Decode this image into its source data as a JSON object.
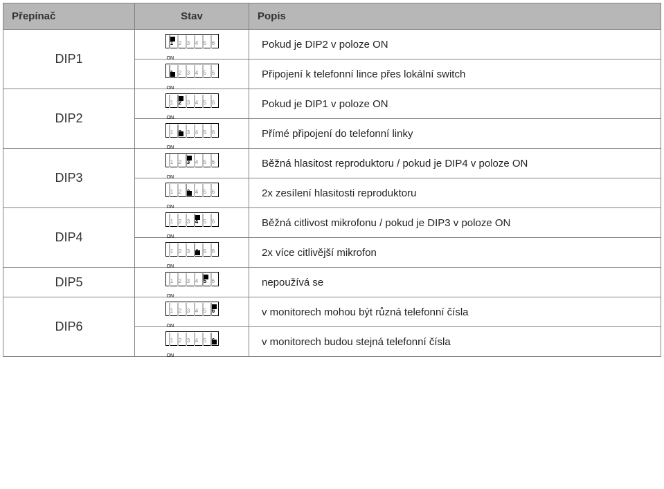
{
  "colors": {
    "header_bg": "#b7b7b7",
    "border": "#808080",
    "text": "#222222",
    "inactive": "#bbbbbb",
    "knob": "#000000"
  },
  "header": {
    "col_switch": "Přepínač",
    "col_state": "Stav",
    "col_desc": "Popis"
  },
  "on_label": "ON",
  "rows": [
    {
      "name": "DIP1",
      "states": [
        {
          "highlight": 1,
          "position": "up",
          "desc": "Pokud je DIP2 v poloze ON"
        },
        {
          "highlight": 1,
          "position": "down",
          "desc": "Připojení k telefonní lince přes lokální switch"
        }
      ]
    },
    {
      "name": "DIP2",
      "states": [
        {
          "highlight": 2,
          "position": "up",
          "desc": "Pokud je DIP1 v poloze ON"
        },
        {
          "highlight": 2,
          "position": "down",
          "desc": "Přímé připojení do telefonní linky"
        }
      ]
    },
    {
      "name": "DIP3",
      "states": [
        {
          "highlight": 3,
          "position": "up",
          "desc": "Běžná hlasitost reproduktoru / pokud je DIP4 v poloze ON"
        },
        {
          "highlight": 3,
          "position": "down",
          "desc": "2x zesílení hlasitosti reproduktoru"
        }
      ]
    },
    {
      "name": "DIP4",
      "states": [
        {
          "highlight": 4,
          "position": "up",
          "desc": "Běžná citlivost mikrofonu / pokud je DIP3 v poloze ON"
        },
        {
          "highlight": 4,
          "position": "down",
          "desc": "2x více citlivější mikrofon"
        }
      ]
    },
    {
      "name": "DIP5",
      "states": [
        {
          "highlight": 5,
          "position": "up",
          "desc": "nepoužívá se"
        }
      ]
    },
    {
      "name": "DIP6",
      "states": [
        {
          "highlight": 6,
          "position": "up",
          "desc": "v monitorech mohou být různá telefonní čísla"
        },
        {
          "highlight": 6,
          "position": "down",
          "desc": "v monitorech budou stejná telefonní čísla"
        }
      ]
    }
  ],
  "slot_count": 6
}
